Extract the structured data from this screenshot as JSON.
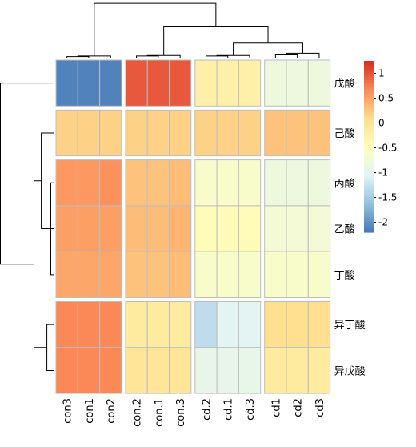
{
  "chart_data": {
    "type": "heatmap",
    "columns": [
      "con3",
      "con1",
      "con2",
      "con.2",
      "con.1",
      "con.3",
      "cd.2",
      "cd.1",
      "cd.3",
      "cd1",
      "cd2",
      "cd3"
    ],
    "rows": [
      "戊酸",
      "己酸",
      "丙酸",
      "乙酸",
      "丁酸",
      "异丁酸",
      "异戊酸"
    ],
    "values": [
      [
        -2.1,
        -2.1,
        -2.1,
        1.0,
        1.0,
        1.0,
        -0.2,
        -0.2,
        -0.2,
        -0.8,
        -0.8,
        -0.8
      ],
      [
        0.2,
        0.2,
        0.2,
        0.2,
        0.2,
        0.2,
        0.2,
        0.2,
        0.2,
        0.3,
        0.3,
        0.3
      ],
      [
        0.6,
        0.6,
        0.65,
        0.3,
        0.3,
        0.35,
        -0.6,
        -0.6,
        -0.6,
        -0.8,
        -0.8,
        -0.8
      ],
      [
        0.55,
        0.55,
        0.55,
        0.35,
        0.35,
        0.4,
        -0.4,
        -0.4,
        -0.4,
        -0.7,
        -0.7,
        -0.7
      ],
      [
        0.5,
        0.5,
        0.5,
        0.3,
        0.3,
        0.35,
        -0.6,
        -0.6,
        -0.6,
        -0.6,
        -0.6,
        -0.6
      ],
      [
        0.7,
        0.7,
        0.7,
        -0.1,
        -0.1,
        -0.1,
        -1.3,
        -1.0,
        -1.0,
        0.1,
        0.1,
        0.1
      ],
      [
        0.7,
        0.7,
        0.7,
        0.0,
        0.0,
        0.0,
        -0.9,
        -0.9,
        -0.9,
        -0.1,
        -0.1,
        -0.1
      ]
    ],
    "legend": {
      "ticks": [
        "1",
        "0.5",
        "0",
        "-0.5",
        "-1",
        "-1.5",
        "-2"
      ],
      "tick_values": [
        1,
        0.5,
        0,
        -0.5,
        -1,
        -1.5,
        -2
      ],
      "range": [
        -2.2,
        1.25
      ],
      "colors": [
        "#4575b4",
        "#91bfdb",
        "#e0f3f8",
        "#ffffbf",
        "#fee090",
        "#fc8d59",
        "#d73027"
      ],
      "placement": "right"
    },
    "row_dendrogram": {
      "merges": [
        [
          2,
          4,
          0.05
        ],
        [
          3,
          7,
          0.08
        ],
        [
          5,
          6,
          0.12
        ],
        [
          1,
          8,
          0.22
        ],
        [
          9,
          10,
          0.35
        ],
        [
          0,
          11,
          0.95
        ]
      ]
    },
    "col_dendrogram": {
      "merges": [
        [
          0,
          1,
          0.02
        ],
        [
          12,
          2,
          0.03
        ],
        [
          3,
          4,
          0.03
        ],
        [
          14,
          5,
          0.04
        ],
        [
          6,
          7,
          0.03
        ],
        [
          16,
          8,
          0.04
        ],
        [
          9,
          10,
          0.05
        ],
        [
          18,
          11,
          0.08
        ],
        [
          17,
          19,
          0.26
        ],
        [
          15,
          20,
          0.55
        ],
        [
          13,
          21,
          0.97
        ]
      ]
    },
    "row_gap_after": [
      0,
      1,
      4
    ],
    "col_gap_after": [
      2,
      5,
      8
    ],
    "grid": true
  }
}
